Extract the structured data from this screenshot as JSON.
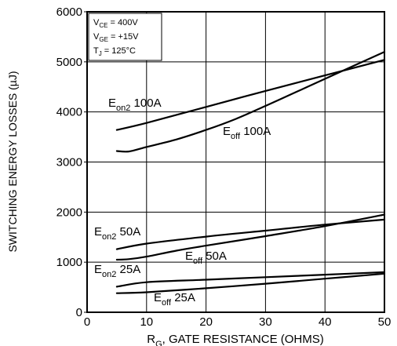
{
  "chart_data": {
    "type": "line",
    "xlabel": "R",
    "xlabel_sub": "G",
    "xlabel_rest": ", GATE  RESISTANCE (OHMS)",
    "ylabel": "SWITCHING ENERGY LOSSES (µJ)",
    "xlim": [
      0,
      50
    ],
    "ylim": [
      0,
      6000
    ],
    "x_ticks": [
      0,
      10,
      20,
      30,
      40,
      50
    ],
    "y_ticks": [
      0,
      1000,
      2000,
      3000,
      4000,
      5000,
      6000
    ],
    "x_tick_labels": [
      "0",
      "10",
      "20",
      "30",
      "40",
      "50"
    ],
    "y_tick_labels": [
      "0",
      "1000",
      "2000",
      "3000",
      "4000",
      "5000",
      "6000"
    ],
    "grid": true,
    "conditions": [
      {
        "main": "V",
        "sub": "CE",
        "rest": " =  400V"
      },
      {
        "main": "V",
        "sub": "GE",
        "rest": " = +15V"
      },
      {
        "main": "T",
        "sub": "J",
        "rest": " = 125°C"
      }
    ],
    "series": [
      {
        "name": "Eon2 100A",
        "label": {
          "main": "E",
          "sub": "on2",
          "rest": " 100A"
        },
        "x": [
          5,
          10,
          20,
          30,
          40,
          50
        ],
        "y": [
          3640,
          3780,
          4100,
          4420,
          4730,
          5040
        ]
      },
      {
        "name": "Eoff 100A",
        "label": {
          "main": "E",
          "sub": "off",
          "rest": " 100A"
        },
        "x": [
          5,
          7,
          10,
          15,
          20,
          25,
          30,
          35,
          40,
          45,
          50
        ],
        "y": [
          3220,
          3210,
          3300,
          3450,
          3640,
          3860,
          4120,
          4390,
          4660,
          4930,
          5200
        ]
      },
      {
        "name": "Eon2 50A",
        "label": {
          "main": "E",
          "sub": "on2",
          "rest": " 50A"
        },
        "x": [
          5,
          10,
          20,
          30,
          40,
          50
        ],
        "y": [
          1260,
          1370,
          1510,
          1630,
          1750,
          1850
        ]
      },
      {
        "name": "Eoff 50A",
        "label": {
          "main": "E",
          "sub": "off",
          "rest": " 50A"
        },
        "x": [
          5,
          7,
          10,
          15,
          20,
          30,
          40,
          50
        ],
        "y": [
          1050,
          1060,
          1110,
          1230,
          1330,
          1520,
          1720,
          1950
        ]
      },
      {
        "name": "Eon2 25A",
        "label": {
          "main": "E",
          "sub": "on2",
          "rest": " 25A"
        },
        "x": [
          5,
          10,
          20,
          30,
          40,
          50
        ],
        "y": [
          510,
          600,
          650,
          700,
          750,
          800
        ]
      },
      {
        "name": "Eoff 25A",
        "label": {
          "main": "E",
          "sub": "off",
          "rest": " 25A"
        },
        "x": [
          5,
          10,
          20,
          30,
          40,
          50
        ],
        "y": [
          380,
          400,
          480,
          570,
          670,
          770
        ]
      }
    ]
  }
}
